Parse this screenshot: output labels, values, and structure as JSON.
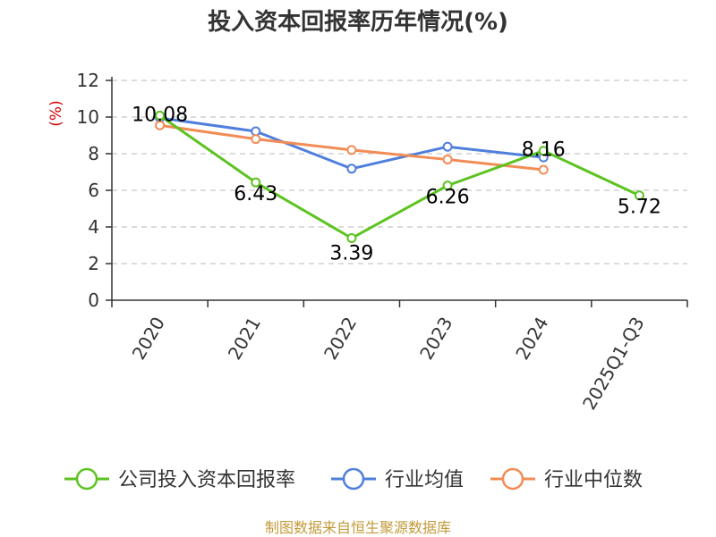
{
  "chart_data": {
    "type": "line",
    "title": "投入资本回报率历年情况(%)",
    "ylabel": "(%)",
    "xlabel": "",
    "categories": [
      "2020",
      "2021",
      "2022",
      "2023",
      "2024",
      "2025Q1-Q3"
    ],
    "ylim": [
      0,
      12
    ],
    "yticks": [
      0,
      2,
      4,
      6,
      8,
      10,
      12
    ],
    "grid": true,
    "legend_position": "bottom",
    "series": [
      {
        "name": "公司投入资本回报率",
        "color": "#5cc321",
        "values": [
          10.08,
          6.43,
          3.39,
          6.26,
          8.16,
          5.72
        ],
        "labels": [
          "10.08",
          "6.43",
          "3.39",
          "6.26",
          "8.16",
          "5.72"
        ]
      },
      {
        "name": "行业均值",
        "color": "#4f7fdc",
        "values": [
          9.95,
          9.22,
          7.18,
          8.38,
          7.8,
          null
        ]
      },
      {
        "name": "行业中位数",
        "color": "#f28c55",
        "values": [
          9.55,
          8.8,
          8.2,
          7.68,
          7.12,
          null
        ]
      }
    ]
  },
  "source": "制图数据来自恒生聚源数据库"
}
